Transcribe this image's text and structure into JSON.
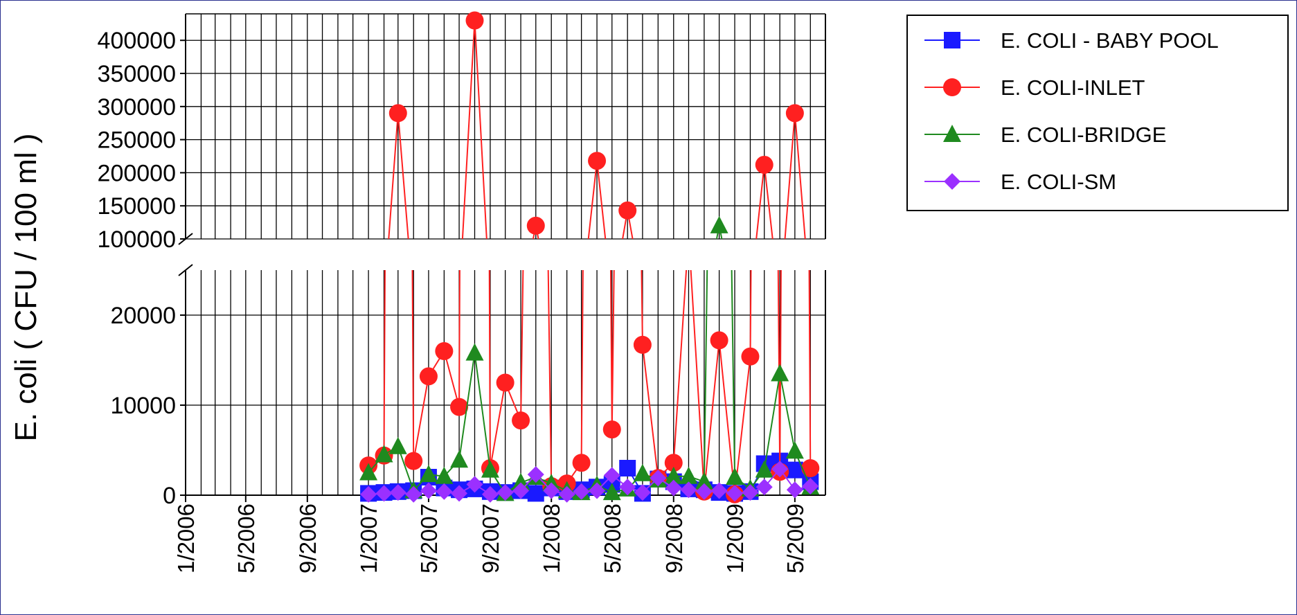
{
  "chart_data": {
    "type": "line",
    "title": "",
    "xlabel": "",
    "ylabel": "E. coli ( CFU / 100 ml )",
    "x_tick_labels": [
      "1/2006",
      "5/2006",
      "9/2006",
      "1/2007",
      "5/2007",
      "9/2007",
      "1/2008",
      "5/2008",
      "9/2008",
      "1/2009",
      "5/2009"
    ],
    "xlim": [
      "2006-01-01",
      "2009-07-01"
    ],
    "x_gridlines": "monthly",
    "y_axis_broken": true,
    "upper_panel": {
      "ylim": [
        100000,
        440000
      ],
      "y_ticks": [
        100000,
        150000,
        200000,
        250000,
        300000,
        350000,
        400000
      ]
    },
    "lower_panel": {
      "ylim": [
        0,
        25000
      ],
      "y_ticks": [
        0,
        10000,
        20000
      ]
    },
    "grid": true,
    "legend_position": "right",
    "series": [
      {
        "name": "E. COLI - BABY POOL",
        "color": "#1a1aff",
        "marker": "square",
        "x": [
          "2007-01-01",
          "2007-02-01",
          "2007-03-01",
          "2007-04-01",
          "2007-05-01",
          "2007-06-01",
          "2007-07-01",
          "2007-08-01",
          "2007-09-01",
          "2007-10-01",
          "2007-11-01",
          "2007-12-01",
          "2008-01-01",
          "2008-02-01",
          "2008-03-01",
          "2008-04-01",
          "2008-05-01",
          "2008-06-01",
          "2008-07-01",
          "2008-08-01",
          "2008-09-01",
          "2008-10-01",
          "2008-11-01",
          "2008-12-01",
          "2009-01-01",
          "2009-02-01",
          "2009-03-01",
          "2009-04-01",
          "2009-05-01",
          "2009-06-01"
        ],
        "y": [
          200,
          300,
          400,
          500,
          2000,
          800,
          600,
          700,
          400,
          300,
          500,
          200,
          800,
          400,
          600,
          900,
          1200,
          3000,
          200,
          1800,
          1500,
          700,
          600,
          300,
          200,
          400,
          3500,
          3800,
          2800,
          1500
        ]
      },
      {
        "name": "E. COLI-INLET",
        "color": "#ff2020",
        "marker": "circle",
        "x": [
          "2007-01-01",
          "2007-02-01",
          "2007-03-01",
          "2007-04-01",
          "2007-05-01",
          "2007-06-01",
          "2007-07-01",
          "2007-08-01",
          "2007-09-01",
          "2007-10-01",
          "2007-11-01",
          "2007-12-01",
          "2008-01-01",
          "2008-02-01",
          "2008-03-01",
          "2008-04-01",
          "2008-05-01",
          "2008-06-01",
          "2008-07-01",
          "2008-08-01",
          "2008-09-01",
          "2008-10-01",
          "2008-11-01",
          "2008-12-01",
          "2009-01-01",
          "2009-02-01",
          "2009-03-01",
          "2009-04-01",
          "2009-05-01",
          "2009-06-01"
        ],
        "y": [
          3300,
          4400,
          290000,
          3800,
          13200,
          16000,
          9800,
          430000,
          3000,
          12500,
          8300,
          120000,
          1000,
          1300,
          3600,
          218000,
          7300,
          143000,
          16700,
          1900,
          3600,
          29000,
          400,
          17200,
          100,
          15400,
          212000,
          2600,
          290000,
          3000
        ]
      },
      {
        "name": "E. COLI-BRIDGE",
        "color": "#1f8a1f",
        "marker": "triangle",
        "x": [
          "2007-01-01",
          "2007-02-01",
          "2007-03-01",
          "2007-04-01",
          "2007-05-01",
          "2007-06-01",
          "2007-07-01",
          "2007-08-01",
          "2007-09-01",
          "2007-10-01",
          "2007-11-01",
          "2007-12-01",
          "2008-01-01",
          "2008-02-01",
          "2008-03-01",
          "2008-04-01",
          "2008-05-01",
          "2008-06-01",
          "2008-07-01",
          "2008-08-01",
          "2008-09-01",
          "2008-10-01",
          "2008-11-01",
          "2008-12-01",
          "2009-01-01",
          "2009-02-01",
          "2009-03-01",
          "2009-04-01",
          "2009-05-01",
          "2009-06-01"
        ],
        "y": [
          2500,
          4500,
          5400,
          500,
          2300,
          2100,
          3900,
          15800,
          2800,
          200,
          1400,
          2000,
          1300,
          500,
          300,
          1100,
          300,
          700,
          2400,
          1700,
          2100,
          2100,
          1500,
          120000,
          2000,
          700,
          2800,
          13500,
          4900,
          900
        ]
      },
      {
        "name": "E. COLI-SM",
        "color": "#9b30ff",
        "marker": "diamond",
        "x": [
          "2007-01-01",
          "2007-02-01",
          "2007-03-01",
          "2007-04-01",
          "2007-05-01",
          "2007-06-01",
          "2007-07-01",
          "2007-08-01",
          "2007-09-01",
          "2007-10-01",
          "2007-11-01",
          "2007-12-01",
          "2008-01-01",
          "2008-02-01",
          "2008-03-01",
          "2008-04-01",
          "2008-05-01",
          "2008-06-01",
          "2008-07-01",
          "2008-08-01",
          "2008-09-01",
          "2008-10-01",
          "2008-11-01",
          "2008-12-01",
          "2009-01-01",
          "2009-02-01",
          "2009-03-01",
          "2009-04-01",
          "2009-05-01",
          "2009-06-01"
        ],
        "y": [
          100,
          200,
          300,
          100,
          500,
          400,
          200,
          1200,
          100,
          300,
          500,
          2300,
          500,
          100,
          400,
          500,
          2200,
          900,
          300,
          1900,
          800,
          600,
          400,
          500,
          200,
          300,
          900,
          2900,
          600,
          1000
        ]
      }
    ]
  }
}
